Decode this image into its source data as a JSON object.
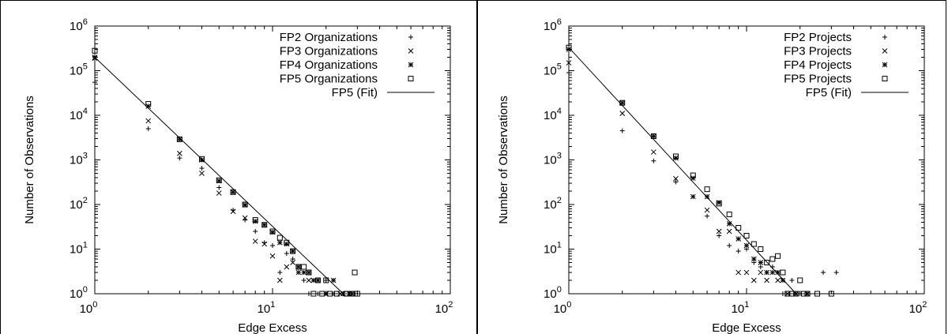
{
  "chart_data": [
    {
      "type": "scatter",
      "xscale": "log",
      "yscale": "log",
      "xlim": [
        1,
        100
      ],
      "ylim": [
        1,
        1000000
      ],
      "xlabel": "Edge Excess",
      "ylabel": "Number of Observations",
      "xticks": [
        {
          "base": "10",
          "exp": "0"
        },
        {
          "base": "10",
          "exp": "1"
        },
        {
          "base": "10",
          "exp": "2"
        }
      ],
      "yticks": [
        {
          "base": "10",
          "exp": "0"
        },
        {
          "base": "10",
          "exp": "1"
        },
        {
          "base": "10",
          "exp": "2"
        },
        {
          "base": "10",
          "exp": "3"
        },
        {
          "base": "10",
          "exp": "4"
        },
        {
          "base": "10",
          "exp": "5"
        },
        {
          "base": "10",
          "exp": "6"
        }
      ],
      "legend_position": "top-right",
      "series": [
        {
          "name": "FP2 Organizations",
          "marker": "plus",
          "points": [
            [
              1,
              55000
            ],
            [
              2,
              5000
            ],
            [
              3,
              1100
            ],
            [
              4,
              650
            ],
            [
              5,
              240
            ],
            [
              6,
              75
            ],
            [
              7,
              45
            ],
            [
              8,
              25
            ],
            [
              9,
              14
            ],
            [
              10,
              12
            ],
            [
              11,
              3
            ],
            [
              12,
              8
            ],
            [
              13,
              6
            ],
            [
              14,
              3
            ],
            [
              15,
              2
            ],
            [
              16,
              1
            ],
            [
              18,
              1
            ],
            [
              20,
              2
            ],
            [
              22,
              1
            ],
            [
              25,
              1
            ],
            [
              30,
              1
            ]
          ]
        },
        {
          "name": "FP3 Organizations",
          "marker": "cross",
          "points": [
            [
              1,
              190000
            ],
            [
              2,
              7500
            ],
            [
              3,
              1400
            ],
            [
              4,
              500
            ],
            [
              5,
              180
            ],
            [
              6,
              70
            ],
            [
              7,
              50
            ],
            [
              8,
              15
            ],
            [
              9,
              13
            ],
            [
              10,
              7
            ],
            [
              11,
              2
            ],
            [
              12,
              4
            ],
            [
              13,
              5
            ],
            [
              14,
              3
            ],
            [
              16,
              2
            ],
            [
              20,
              1
            ],
            [
              24,
              1
            ]
          ]
        },
        {
          "name": "FP4 Organizations",
          "marker": "star",
          "points": [
            [
              1,
              200000
            ],
            [
              2,
              16000
            ],
            [
              3,
              2900
            ],
            [
              4,
              1000
            ],
            [
              5,
              340
            ],
            [
              6,
              190
            ],
            [
              7,
              98
            ],
            [
              8,
              42
            ],
            [
              9,
              35
            ],
            [
              10,
              24
            ],
            [
              11,
              14
            ],
            [
              12,
              13
            ],
            [
              13,
              9
            ],
            [
              14,
              4
            ],
            [
              15,
              3
            ],
            [
              16,
              3
            ],
            [
              17,
              2
            ],
            [
              18,
              2
            ],
            [
              20,
              1
            ],
            [
              22,
              2
            ],
            [
              25,
              1
            ],
            [
              27,
              1
            ],
            [
              28,
              1
            ]
          ]
        },
        {
          "name": "FP5 Organizations",
          "marker": "square",
          "points": [
            [
              1,
              280000
            ],
            [
              2,
              18000
            ],
            [
              3,
              2900
            ],
            [
              4,
              1050
            ],
            [
              5,
              350
            ],
            [
              6,
              190
            ],
            [
              7,
              100
            ],
            [
              8,
              45
            ],
            [
              9,
              35
            ],
            [
              10,
              25
            ],
            [
              11,
              18
            ],
            [
              12,
              14
            ],
            [
              13,
              9
            ],
            [
              14,
              4
            ],
            [
              15,
              4
            ],
            [
              16,
              3
            ],
            [
              17,
              1
            ],
            [
              18,
              2
            ],
            [
              19,
              1
            ],
            [
              20,
              2
            ],
            [
              21,
              1
            ],
            [
              23,
              1
            ],
            [
              26,
              1
            ],
            [
              28,
              1
            ],
            [
              29,
              3
            ],
            [
              30,
              1
            ]
          ]
        },
        {
          "name": "FP5 (Fit)",
          "marker": "line",
          "points": [
            [
              1,
              200000
            ],
            [
              25,
              1
            ]
          ]
        }
      ]
    },
    {
      "type": "scatter",
      "xscale": "log",
      "yscale": "log",
      "xlim": [
        1,
        100
      ],
      "ylim": [
        1,
        1000000
      ],
      "xlabel": "Edge Excess",
      "ylabel": "Number of Observations",
      "xticks": [
        {
          "base": "10",
          "exp": "0"
        },
        {
          "base": "10",
          "exp": "1"
        },
        {
          "base": "10",
          "exp": "2"
        }
      ],
      "yticks": [
        {
          "base": "10",
          "exp": "0"
        },
        {
          "base": "10",
          "exp": "1"
        },
        {
          "base": "10",
          "exp": "2"
        },
        {
          "base": "10",
          "exp": "3"
        },
        {
          "base": "10",
          "exp": "4"
        },
        {
          "base": "10",
          "exp": "5"
        },
        {
          "base": "10",
          "exp": "6"
        }
      ],
      "legend_position": "top-right",
      "series": [
        {
          "name": "FP2 Projects",
          "marker": "plus",
          "points": [
            [
              1,
              90000
            ],
            [
              2,
              4500
            ],
            [
              3,
              950
            ],
            [
              4,
              320
            ],
            [
              5,
              150
            ],
            [
              6,
              55
            ],
            [
              7,
              20
            ],
            [
              8,
              12
            ],
            [
              9,
              9
            ],
            [
              10,
              10
            ],
            [
              11,
              5
            ],
            [
              12,
              4
            ],
            [
              13,
              3
            ],
            [
              14,
              4
            ],
            [
              15,
              3
            ],
            [
              16,
              1
            ],
            [
              18,
              2
            ],
            [
              20,
              1
            ],
            [
              27,
              3
            ],
            [
              32,
              3
            ]
          ]
        },
        {
          "name": "FP3 Projects",
          "marker": "cross",
          "points": [
            [
              1,
              150000
            ],
            [
              2,
              11000
            ],
            [
              3,
              1500
            ],
            [
              4,
              380
            ],
            [
              5,
              150
            ],
            [
              6,
              75
            ],
            [
              7,
              25
            ],
            [
              8,
              25
            ],
            [
              9,
              3
            ],
            [
              10,
              3
            ],
            [
              11,
              2
            ],
            [
              12,
              3
            ],
            [
              13,
              2
            ],
            [
              15,
              2
            ],
            [
              17,
              1
            ]
          ]
        },
        {
          "name": "FP4 Projects",
          "marker": "star",
          "points": [
            [
              1,
              300000
            ],
            [
              2,
              19000
            ],
            [
              3,
              3400
            ],
            [
              4,
              1100
            ],
            [
              5,
              390
            ],
            [
              6,
              150
            ],
            [
              7,
              110
            ],
            [
              8,
              37
            ],
            [
              9,
              17
            ],
            [
              10,
              12
            ],
            [
              11,
              6
            ],
            [
              12,
              5
            ],
            [
              13,
              3
            ],
            [
              14,
              3
            ],
            [
              15,
              3
            ],
            [
              16,
              2
            ],
            [
              19,
              1
            ],
            [
              22,
              1
            ]
          ]
        },
        {
          "name": "FP5 Projects",
          "marker": "square",
          "points": [
            [
              1,
              330000
            ],
            [
              2,
              19000
            ],
            [
              3,
              3400
            ],
            [
              4,
              1200
            ],
            [
              5,
              450
            ],
            [
              6,
              220
            ],
            [
              7,
              105
            ],
            [
              8,
              60
            ],
            [
              9,
              30
            ],
            [
              10,
              20
            ],
            [
              11,
              13
            ],
            [
              12,
              10
            ],
            [
              13,
              5
            ],
            [
              14,
              6
            ],
            [
              15,
              7
            ],
            [
              16,
              3
            ],
            [
              17,
              1
            ],
            [
              18,
              1
            ],
            [
              19,
              1
            ],
            [
              20,
              2
            ],
            [
              21,
              1
            ],
            [
              22,
              1
            ],
            [
              25,
              1
            ],
            [
              30,
              1
            ]
          ]
        },
        {
          "name": "FP5 (Fit)",
          "marker": "line",
          "points": [
            [
              1,
              330000
            ],
            [
              19,
              1
            ]
          ]
        }
      ]
    }
  ]
}
